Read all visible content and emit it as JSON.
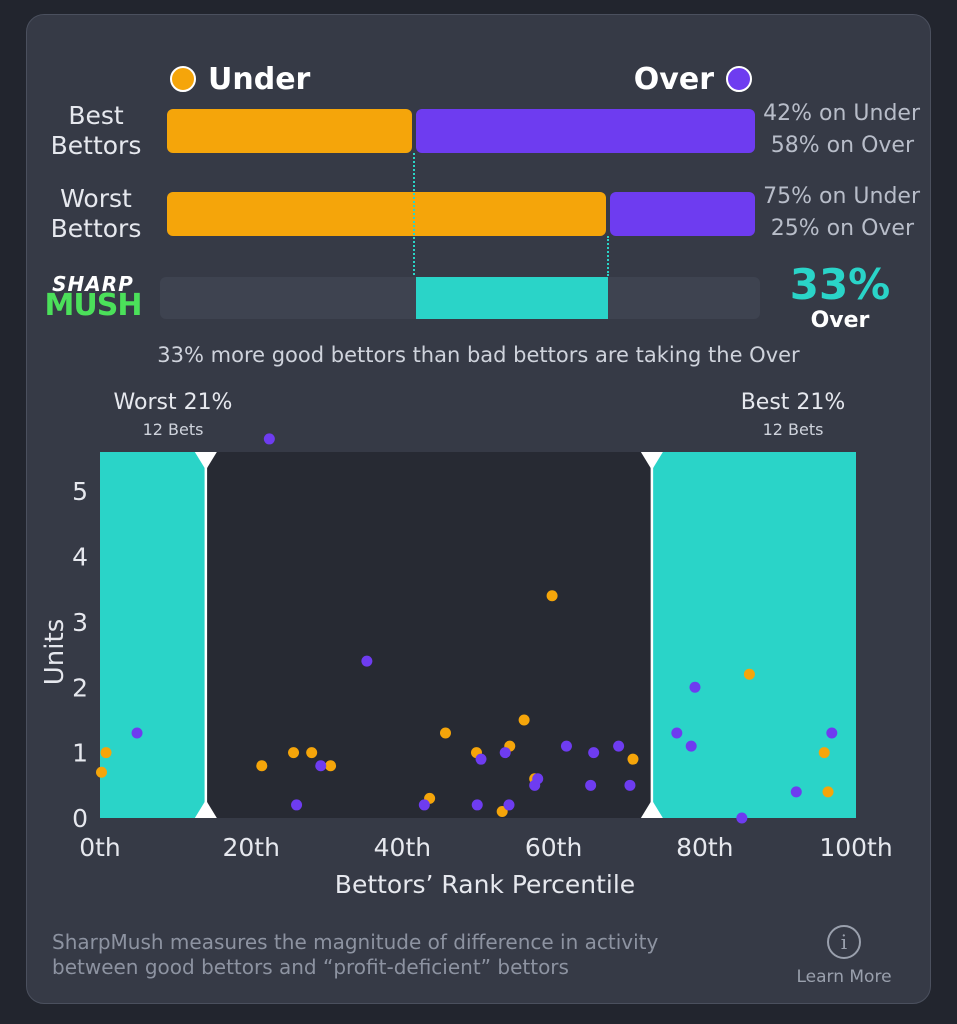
{
  "legend": {
    "under_label": "Under",
    "over_label": "Over",
    "under_color": "#f5a50a",
    "over_color": "#6e3cf0"
  },
  "rows": [
    {
      "label_line1": "Best",
      "label_line2": "Bettors",
      "under_pct": 42,
      "over_pct": 58,
      "under_text": "42% on Under",
      "over_text": "58% on Over"
    },
    {
      "label_line1": "Worst",
      "label_line2": "Bettors",
      "under_pct": 75,
      "over_pct": 25,
      "under_text": "75% on Under",
      "over_text": "25% on Over"
    }
  ],
  "logo": {
    "line1": "SHARP",
    "line2": "MUSH"
  },
  "sharp": {
    "value": "33%",
    "direction": "Over",
    "accent_color": "#2ad4c8"
  },
  "caption": "33% more good bettors than bad bettors are taking the Over",
  "regions": {
    "worst": {
      "title": "Worst 21%",
      "sub": "12 Bets"
    },
    "best": {
      "title": "Best 21%",
      "sub": "12 Bets"
    }
  },
  "chart_data": {
    "type": "scatter",
    "xlabel": "Bettors’ Rank Percentile",
    "ylabel": "Units",
    "xlim": [
      0,
      100
    ],
    "ylim": [
      0,
      5.6
    ],
    "x_ticks": [
      "0th",
      "20th",
      "40th",
      "60th",
      "80th",
      "100th"
    ],
    "x_tick_values": [
      0,
      20,
      40,
      60,
      80,
      100
    ],
    "y_ticks": [
      0,
      1,
      2,
      3,
      4,
      5
    ],
    "highlight_ranges": [
      [
        0,
        14
      ],
      [
        73,
        100
      ]
    ],
    "series": [
      {
        "name": "Under",
        "color": "#f5a50a",
        "points": [
          [
            0.2,
            0.7
          ],
          [
            0.8,
            1.0
          ],
          [
            21.4,
            0.8
          ],
          [
            25.6,
            1.0
          ],
          [
            28.0,
            1.0
          ],
          [
            30.5,
            0.8
          ],
          [
            43.6,
            0.3
          ],
          [
            45.7,
            1.3
          ],
          [
            49.8,
            1.0
          ],
          [
            53.2,
            0.1
          ],
          [
            54.2,
            1.1
          ],
          [
            56.1,
            1.5
          ],
          [
            57.5,
            0.6
          ],
          [
            59.8,
            3.4
          ],
          [
            70.5,
            0.9
          ],
          [
            85.9,
            2.2
          ],
          [
            95.8,
            1.0
          ],
          [
            96.3,
            0.4
          ]
        ]
      },
      {
        "name": "Over",
        "color": "#6e3cf0",
        "points": [
          [
            4.9,
            1.3
          ],
          [
            22.4,
            5.8
          ],
          [
            26.0,
            0.2
          ],
          [
            29.2,
            0.8
          ],
          [
            35.3,
            2.4
          ],
          [
            42.9,
            0.2
          ],
          [
            49.9,
            0.2
          ],
          [
            50.4,
            0.9
          ],
          [
            53.6,
            1.0
          ],
          [
            54.1,
            0.2
          ],
          [
            57.5,
            0.5
          ],
          [
            57.9,
            0.6
          ],
          [
            61.7,
            1.1
          ],
          [
            64.9,
            0.5
          ],
          [
            65.3,
            1.0
          ],
          [
            68.6,
            1.1
          ],
          [
            70.1,
            0.5
          ],
          [
            76.3,
            1.3
          ],
          [
            78.2,
            1.1
          ],
          [
            78.7,
            2.0
          ],
          [
            84.9,
            0.0
          ],
          [
            92.1,
            0.4
          ],
          [
            96.8,
            1.3
          ]
        ]
      }
    ]
  },
  "footer": {
    "line1": "SharpMush measures the magnitude of difference in activity",
    "line2": "between good bettors and “profit-deficient” bettors",
    "learn_more": "Learn More",
    "info_glyph": "i"
  }
}
